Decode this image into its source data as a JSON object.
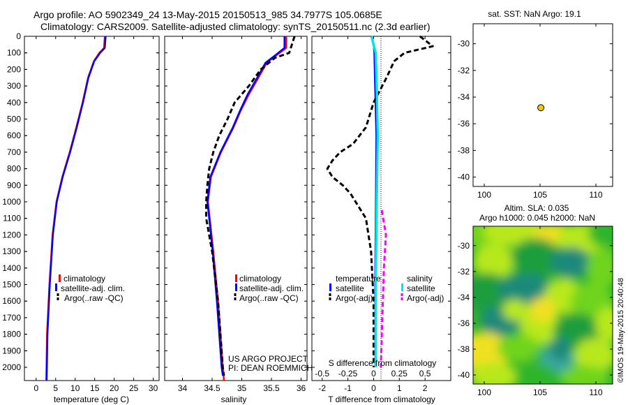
{
  "header": {
    "line1": "Argo profile: AO 5902349_24 13-May-2015 20150513_985 34.7977S 105.0685E",
    "line2": "Climatology: CARS2009. Satellite-adjusted climatology: synTS_20150511.nc (2.3d earlier)"
  },
  "chart_data": [
    {
      "id": "temperature",
      "type": "line",
      "xlabel": "temperature (deg C)",
      "ylabel": "",
      "xlim": [
        -3,
        31.5
      ],
      "ylim": [
        2080,
        0
      ],
      "xticks": [
        "0",
        "5",
        "10",
        "15",
        "20",
        "25",
        "30"
      ],
      "xtick_values": [
        0,
        5,
        10,
        15,
        20,
        25,
        30
      ],
      "yticks": [
        "0",
        "100",
        "200",
        "300",
        "400",
        "500",
        "600",
        "700",
        "800",
        "900",
        "1000",
        "1100",
        "1200",
        "1300",
        "1400",
        "1500",
        "1600",
        "1700",
        "1800",
        "1900",
        "2000"
      ],
      "ytick_values": [
        0,
        100,
        200,
        300,
        400,
        500,
        600,
        700,
        800,
        900,
        1000,
        1100,
        1200,
        1300,
        1400,
        1500,
        1600,
        1700,
        1800,
        1900,
        2000
      ],
      "legend": [
        "climatology",
        "satellite-adj. clim.",
        "Argo(..raw -QC)"
      ],
      "series": [
        {
          "name": "climatology",
          "color": "#ff0000",
          "depth": [
            0,
            70,
            100,
            150,
            250,
            400,
            550,
            700,
            850,
            1000,
            1200,
            1500,
            1800,
            2080
          ],
          "values": [
            17.6,
            17.4,
            16.2,
            14.8,
            13.3,
            11.9,
            10.3,
            8.6,
            6.7,
            5.2,
            4.2,
            3.4,
            2.8,
            2.6
          ]
        },
        {
          "name": "satellite-adj. clim.",
          "color": "#0000ff",
          "depth": [
            0,
            70,
            100,
            150,
            250,
            400,
            550,
            700,
            850,
            1000,
            1200,
            1500,
            1800,
            2080
          ],
          "values": [
            17.8,
            17.6,
            16.4,
            14.9,
            13.4,
            12.0,
            10.4,
            8.7,
            6.8,
            5.3,
            4.3,
            3.5,
            2.9,
            2.7
          ]
        }
      ]
    },
    {
      "id": "salinity",
      "type": "line",
      "xlabel": "salinity",
      "xlim": [
        33.7,
        36.1
      ],
      "ylim": [
        2080,
        0
      ],
      "xticks": [
        "34",
        "34.5",
        "35",
        "35.5",
        "36"
      ],
      "xtick_values": [
        34,
        34.5,
        35,
        35.5,
        36
      ],
      "legend": [
        "climatology",
        "satellite-adj. clim.",
        "Argo(..raw -QC)"
      ],
      "series": [
        {
          "name": "climatology",
          "color": "#ff0000",
          "depth": [
            0,
            70,
            110,
            160,
            250,
            350,
            450,
            550,
            700,
            850,
            1000,
            1100,
            1300,
            1600,
            2000,
            2080
          ],
          "values": [
            35.75,
            35.75,
            35.6,
            35.42,
            35.28,
            35.12,
            34.98,
            34.86,
            34.65,
            34.48,
            34.43,
            34.46,
            34.52,
            34.6,
            34.68,
            34.7
          ]
        },
        {
          "name": "satellite-adj. clim.",
          "color": "#0000ff",
          "depth": [
            0,
            70,
            110,
            160,
            250,
            350,
            450,
            550,
            700,
            850,
            1000,
            1100,
            1300,
            1600,
            2000,
            2050
          ],
          "values": [
            35.72,
            35.72,
            35.58,
            35.4,
            35.26,
            35.1,
            34.97,
            34.85,
            34.64,
            34.47,
            34.42,
            34.45,
            34.51,
            34.58,
            34.66,
            34.68
          ]
        },
        {
          "name": "Argo(..raw -QC)",
          "color": "#000000",
          "depth": [
            0,
            100,
            130,
            200,
            300,
            400,
            500,
            600,
            700,
            800,
            900,
            1000,
            1100,
            1300,
            1600,
            2000,
            2050
          ],
          "values": [
            35.89,
            35.8,
            35.56,
            35.32,
            35.12,
            34.88,
            34.76,
            34.62,
            34.52,
            34.45,
            34.42,
            34.4,
            34.4,
            34.5,
            34.6,
            34.68,
            34.7
          ]
        }
      ]
    },
    {
      "id": "difference",
      "type": "line",
      "xlabel": "T difference from climatology",
      "xlabel2": "S difference from climatology",
      "xlim": [
        -2.4,
        3.0
      ],
      "ylim": [
        2080,
        0
      ],
      "xticks": [
        "-2",
        "-1",
        "0",
        "1",
        "2"
      ],
      "xtick_values": [
        -2,
        -1,
        0,
        1,
        2
      ],
      "sticks": [
        "-0.5",
        "-0.25",
        "0",
        "0.25",
        "0.5"
      ],
      "stick_values": [
        -0.5,
        -0.25,
        0,
        0.25,
        0.5
      ],
      "legend_titles": [
        "temperature",
        "salinity"
      ],
      "legend": [
        "satellite",
        "Argo(-adj)",
        "satellite",
        "Argo(-adj)"
      ],
      "series": [
        {
          "name": "temperature satellite",
          "color": "#0000ff",
          "depth": [
            0,
            60,
            100,
            300,
            600,
            1000,
            1500,
            2000
          ],
          "values": [
            -0.1,
            0.0,
            0.02,
            0.05,
            0.1,
            0.08,
            0.05,
            0.06
          ]
        },
        {
          "name": "temperature Argo(-adj)",
          "color": "#000000",
          "depth": [
            0,
            60,
            100,
            150,
            250,
            400,
            550,
            650,
            700,
            750,
            800,
            850,
            900,
            950,
            1000,
            1100,
            1300,
            1600,
            2000
          ],
          "values": [
            1.8,
            2.3,
            1.2,
            0.8,
            0.5,
            0.0,
            -0.3,
            -0.8,
            -1.3,
            -1.6,
            -1.8,
            -1.6,
            -1.2,
            -0.9,
            -0.7,
            -0.3,
            -0.1,
            0.0,
            0.0
          ]
        },
        {
          "name": "salinity satellite",
          "color": "#00e5e5",
          "depth": [
            0,
            50,
            100,
            300,
            600,
            1000,
            1500,
            2000
          ],
          "values": [
            -0.02,
            0.0,
            0.02,
            0.03,
            0.04,
            0.03,
            0.02,
            0.02
          ]
        },
        {
          "name": "salinity Argo(-adj)",
          "color": "#ff00ff",
          "depth": [
            1050,
            1200,
            1400,
            1600,
            1800,
            2000
          ],
          "values": [
            0.08,
            0.12,
            0.1,
            0.09,
            0.08,
            0.07
          ]
        }
      ]
    },
    {
      "id": "map-position",
      "type": "scatter",
      "title": "sat. SST: NaN Argo: 19.1",
      "xlim": [
        99,
        111.5
      ],
      "ylim": [
        -40.7,
        -28.5
      ],
      "xticks": [
        "100",
        "105",
        "110"
      ],
      "xtick_values": [
        100,
        105,
        110
      ],
      "yticks": [
        "-30",
        "-32",
        "-34",
        "-36",
        "-38",
        "-40"
      ],
      "ytick_values": [
        -30,
        -32,
        -34,
        -36,
        -38,
        -40
      ],
      "points": [
        {
          "lon": 105.0685,
          "lat": -34.7977,
          "color": "#f0c800"
        }
      ]
    },
    {
      "id": "map-sla",
      "type": "heatmap",
      "title": "Altim. SLA: 0.035",
      "title2": "Argo h1000: 0.045 h2000: NaN",
      "xlim": [
        99,
        111.5
      ],
      "ylim": [
        -40.7,
        -28.5
      ],
      "xticks": [
        "100",
        "105",
        "110"
      ],
      "xtick_values": [
        100,
        105,
        110
      ],
      "yticks": [
        "-30",
        "-32",
        "-34",
        "-36",
        "-38",
        "-40"
      ],
      "ytick_values": [
        -30,
        -32,
        -34,
        -36,
        -38,
        -40
      ],
      "palette": [
        "#1a9e3c",
        "#2fb52a",
        "#6fd41f",
        "#b8e81a",
        "#f0e020",
        "#1a8a7a",
        "#3aa8a0"
      ]
    }
  ],
  "credits": {
    "project": "US ARGO PROJECT",
    "pi": "PI: DEAN ROEMMICH",
    "stamp": "©IMOS 19-May-2015 20:40:48"
  }
}
